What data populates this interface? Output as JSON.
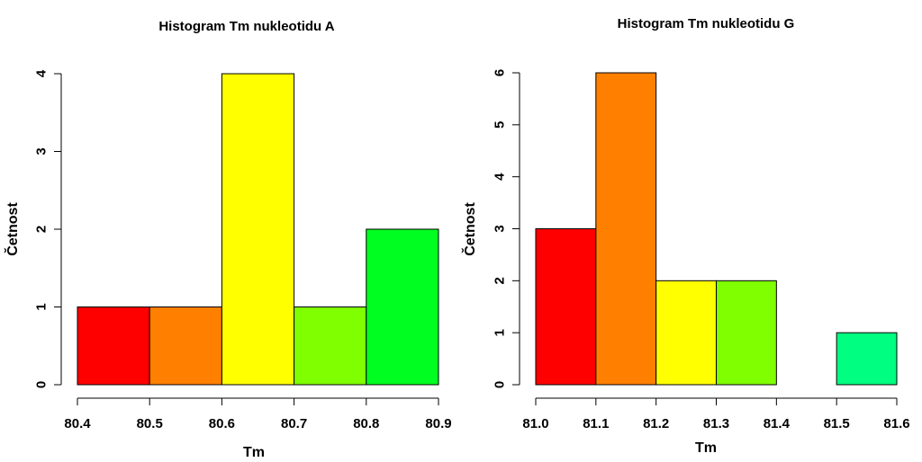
{
  "chart_data": [
    {
      "type": "bar",
      "title": "Histogram Tm nukleotidu A",
      "xlabel": "Tm",
      "ylabel": "Četnost",
      "bin_edges": [
        80.4,
        80.5,
        80.6,
        80.7,
        80.8,
        80.9
      ],
      "values": [
        1,
        1,
        4,
        1,
        2
      ],
      "colors": [
        "#ff0000",
        "#ff8000",
        "#ffff00",
        "#80ff00",
        "#00ff20"
      ],
      "xlim": [
        80.4,
        80.9
      ],
      "ylim": [
        0,
        4
      ],
      "xticks": [
        "80.4",
        "80.5",
        "80.6",
        "80.7",
        "80.8",
        "80.9"
      ],
      "yticks": [
        "0",
        "1",
        "2",
        "3",
        "4"
      ],
      "grid": false,
      "legend": "none"
    },
    {
      "type": "bar",
      "title": "Histogram Tm nukleotidu G",
      "xlabel": "Tm",
      "ylabel": "Četnost",
      "bin_edges": [
        81.0,
        81.1,
        81.2,
        81.3,
        81.4,
        81.5,
        81.6
      ],
      "values": [
        3,
        6,
        2,
        2,
        0,
        1
      ],
      "colors": [
        "#ff0000",
        "#ff8000",
        "#ffff00",
        "#80ff00",
        "#00ff20",
        "#00ff80"
      ],
      "xlim": [
        81.0,
        81.6
      ],
      "ylim": [
        0,
        6
      ],
      "xticks": [
        "81.0",
        "81.1",
        "81.2",
        "81.3",
        "81.4",
        "81.5",
        "81.6"
      ],
      "yticks": [
        "0",
        "1",
        "2",
        "3",
        "4",
        "5",
        "6"
      ],
      "grid": false,
      "legend": "none"
    }
  ]
}
